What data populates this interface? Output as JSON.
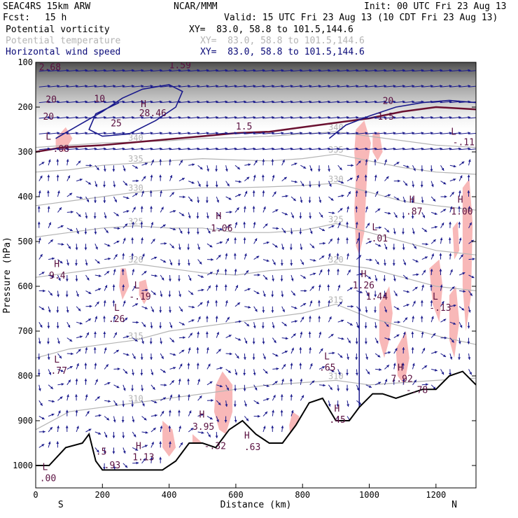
{
  "header": {
    "model": "SEAC4RS 15km ARW",
    "center": "NCAR/MMM",
    "init": "Init: 00 UTC Fri 23 Aug 13",
    "fcst_label": "Fcst:",
    "fcst_value": "15 h",
    "valid": "Valid: 15 UTC Fri 23 Aug 13 (10 CDT Fri 23 Aug 13)",
    "fields": [
      {
        "name": "Potential vorticity",
        "xy": "XY=  83.0, 58.8 to 101.5,144.6"
      },
      {
        "name": "Potential temperature",
        "xy": "XY=  83.0, 58.8 to 101.5,144.6"
      },
      {
        "name": "Horizontal wind speed",
        "xy": "XY=  83.0, 58.8 to 101.5,144.6"
      }
    ]
  },
  "colors": {
    "pv_shade": "#f8b8b8",
    "wind": "#1a1a8c",
    "theta": "#b4b4b4",
    "pv_label": "#5a1040",
    "terrain": "#000000",
    "tropo": "#6a1030"
  },
  "chart_data": {
    "type": "cross-section",
    "xlabel": "Distance (km)",
    "ylabel": "Pressure (hPa)",
    "xlim": [
      0,
      1320
    ],
    "ylim": [
      1050,
      100
    ],
    "x_ticks": [
      0,
      200,
      400,
      600,
      800,
      1000,
      1200
    ],
    "y_ticks": [
      100,
      200,
      300,
      400,
      500,
      600,
      700,
      800,
      900,
      1000
    ],
    "endpoints": {
      "left": "S",
      "right": "N"
    },
    "terrain": [
      [
        0,
        1000
      ],
      [
        40,
        1000
      ],
      [
        90,
        960
      ],
      [
        140,
        950
      ],
      [
        160,
        930
      ],
      [
        180,
        990
      ],
      [
        200,
        1010
      ],
      [
        300,
        1010
      ],
      [
        380,
        1010
      ],
      [
        420,
        990
      ],
      [
        460,
        950
      ],
      [
        500,
        950
      ],
      [
        540,
        960
      ],
      [
        580,
        920
      ],
      [
        620,
        900
      ],
      [
        660,
        930
      ],
      [
        700,
        950
      ],
      [
        740,
        950
      ],
      [
        780,
        910
      ],
      [
        820,
        860
      ],
      [
        860,
        850
      ],
      [
        900,
        900
      ],
      [
        940,
        900
      ],
      [
        970,
        870
      ],
      [
        1010,
        840
      ],
      [
        1040,
        840
      ],
      [
        1080,
        850
      ],
      [
        1120,
        840
      ],
      [
        1160,
        830
      ],
      [
        1200,
        830
      ],
      [
        1240,
        800
      ],
      [
        1280,
        790
      ],
      [
        1320,
        820
      ]
    ],
    "theta_contours": [
      {
        "label": "310",
        "points": [
          [
            0,
            920
          ],
          [
            100,
            880
          ],
          [
            200,
            870
          ],
          [
            300,
            860
          ],
          [
            400,
            850
          ],
          [
            500,
            840
          ],
          [
            600,
            830
          ],
          [
            700,
            820
          ],
          [
            800,
            815
          ],
          [
            900,
            810
          ],
          [
            1000,
            820
          ],
          [
            1100,
            815
          ],
          [
            1200,
            810
          ],
          [
            1320,
            805
          ]
        ]
      },
      {
        "label": "315",
        "points": [
          [
            0,
            760
          ],
          [
            100,
            740
          ],
          [
            200,
            730
          ],
          [
            300,
            720
          ],
          [
            400,
            700
          ],
          [
            500,
            690
          ],
          [
            600,
            680
          ],
          [
            700,
            670
          ],
          [
            800,
            660
          ],
          [
            900,
            640
          ],
          [
            1000,
            670
          ],
          [
            1100,
            690
          ],
          [
            1200,
            710
          ],
          [
            1320,
            730
          ]
        ]
      },
      {
        "label": "320",
        "points": [
          [
            0,
            580
          ],
          [
            100,
            570
          ],
          [
            200,
            560
          ],
          [
            300,
            550
          ],
          [
            400,
            560
          ],
          [
            500,
            570
          ],
          [
            600,
            575
          ],
          [
            700,
            565
          ],
          [
            800,
            560
          ],
          [
            900,
            550
          ],
          [
            1000,
            560
          ],
          [
            1100,
            580
          ],
          [
            1200,
            600
          ],
          [
            1320,
            610
          ]
        ]
      },
      {
        "label": "325",
        "points": [
          [
            0,
            490
          ],
          [
            100,
            480
          ],
          [
            200,
            470
          ],
          [
            300,
            465
          ],
          [
            400,
            470
          ],
          [
            500,
            470
          ],
          [
            600,
            480
          ],
          [
            700,
            480
          ],
          [
            800,
            475
          ],
          [
            900,
            460
          ],
          [
            1000,
            480
          ],
          [
            1100,
            500
          ],
          [
            1200,
            520
          ],
          [
            1320,
            530
          ]
        ]
      },
      {
        "label": "330",
        "points": [
          [
            0,
            420
          ],
          [
            100,
            410
          ],
          [
            200,
            400
          ],
          [
            300,
            390
          ],
          [
            400,
            385
          ],
          [
            500,
            380
          ],
          [
            600,
            380
          ],
          [
            700,
            378
          ],
          [
            800,
            375
          ],
          [
            900,
            370
          ],
          [
            1000,
            390
          ],
          [
            1100,
            410
          ],
          [
            1200,
            420
          ],
          [
            1320,
            430
          ]
        ]
      },
      {
        "label": "335",
        "points": [
          [
            0,
            345
          ],
          [
            100,
            340
          ],
          [
            200,
            330
          ],
          [
            300,
            325
          ],
          [
            400,
            320
          ],
          [
            500,
            315
          ],
          [
            600,
            318
          ],
          [
            700,
            320
          ],
          [
            800,
            315
          ],
          [
            900,
            305
          ],
          [
            1000,
            320
          ],
          [
            1100,
            335
          ],
          [
            1200,
            345
          ],
          [
            1320,
            350
          ]
        ]
      },
      {
        "label": "340",
        "points": [
          [
            0,
            290
          ],
          [
            100,
            285
          ],
          [
            200,
            280
          ],
          [
            300,
            278
          ],
          [
            400,
            275
          ],
          [
            500,
            270
          ],
          [
            600,
            268
          ],
          [
            700,
            265
          ],
          [
            800,
            260
          ],
          [
            900,
            255
          ],
          [
            1000,
            265
          ],
          [
            1100,
            275
          ],
          [
            1200,
            285
          ],
          [
            1320,
            290
          ]
        ]
      }
    ],
    "pv_shaded_regions": [
      [
        [
          60,
          270
        ],
        [
          90,
          245
        ],
        [
          110,
          270
        ],
        [
          85,
          300
        ],
        [
          60,
          290
        ]
      ],
      [
        [
          255,
          560
        ],
        [
          270,
          560
        ],
        [
          280,
          600
        ],
        [
          260,
          630
        ],
        [
          250,
          600
        ]
      ],
      [
        [
          310,
          590
        ],
        [
          330,
          585
        ],
        [
          340,
          620
        ],
        [
          325,
          640
        ],
        [
          310,
          620
        ]
      ],
      [
        [
          540,
          820
        ],
        [
          560,
          790
        ],
        [
          590,
          820
        ],
        [
          590,
          880
        ],
        [
          570,
          930
        ],
        [
          550,
          920
        ],
        [
          535,
          880
        ]
      ],
      [
        [
          380,
          900
        ],
        [
          410,
          920
        ],
        [
          420,
          960
        ],
        [
          400,
          980
        ],
        [
          380,
          960
        ]
      ],
      [
        [
          470,
          930
        ],
        [
          500,
          950
        ],
        [
          490,
          980
        ],
        [
          470,
          970
        ]
      ],
      [
        [
          760,
          910
        ],
        [
          770,
          880
        ],
        [
          790,
          890
        ],
        [
          785,
          940
        ],
        [
          765,
          950
        ]
      ],
      [
        [
          960,
          250
        ],
        [
          985,
          230
        ],
        [
          1005,
          280
        ],
        [
          995,
          330
        ],
        [
          990,
          400
        ],
        [
          985,
          480
        ],
        [
          970,
          530
        ],
        [
          960,
          510
        ],
        [
          955,
          430
        ],
        [
          960,
          350
        ],
        [
          955,
          300
        ]
      ],
      [
        [
          1010,
          260
        ],
        [
          1030,
          255
        ],
        [
          1040,
          300
        ],
        [
          1025,
          320
        ],
        [
          1010,
          300
        ]
      ],
      [
        [
          1030,
          640
        ],
        [
          1060,
          600
        ],
        [
          1070,
          660
        ],
        [
          1060,
          720
        ],
        [
          1045,
          760
        ],
        [
          1030,
          720
        ]
      ],
      [
        [
          1080,
          740
        ],
        [
          1110,
          700
        ],
        [
          1120,
          760
        ],
        [
          1105,
          820
        ],
        [
          1085,
          800
        ]
      ],
      [
        [
          1180,
          560
        ],
        [
          1210,
          540
        ],
        [
          1220,
          600
        ],
        [
          1210,
          680
        ],
        [
          1190,
          640
        ]
      ],
      [
        [
          1240,
          620
        ],
        [
          1260,
          600
        ],
        [
          1270,
          680
        ],
        [
          1255,
          760
        ],
        [
          1240,
          720
        ]
      ],
      [
        [
          1280,
          380
        ],
        [
          1300,
          360
        ],
        [
          1310,
          460
        ],
        [
          1305,
          620
        ],
        [
          1290,
          700
        ],
        [
          1280,
          600
        ]
      ],
      [
        [
          1250,
          470
        ],
        [
          1265,
          455
        ],
        [
          1270,
          520
        ],
        [
          1255,
          540
        ]
      ]
    ],
    "pv_labels": [
      {
        "text": "2.68",
        "x": 10,
        "p": 118
      },
      {
        "text": "1.59",
        "x": 400,
        "p": 113
      },
      {
        "text": "20",
        "x": 30,
        "p": 190
      },
      {
        "text": "10",
        "x": 175,
        "p": 188
      },
      {
        "text": "H",
        "x": 315,
        "p": 200
      },
      {
        "text": "28.46",
        "x": 310,
        "p": 220
      },
      {
        "text": "20",
        "x": 22,
        "p": 228
      },
      {
        "text": "25",
        "x": 225,
        "p": 243
      },
      {
        "text": "1.5",
        "x": 600,
        "p": 250
      },
      {
        "text": "L",
        "x": 30,
        "p": 273
      },
      {
        "text": "-.08",
        "x": 35,
        "p": 300
      },
      {
        "text": "20",
        "x": 1040,
        "p": 193
      },
      {
        "text": "1.5",
        "x": 1025,
        "p": 228
      },
      {
        "text": "L",
        "x": 1245,
        "p": 262
      },
      {
        "text": "-.11",
        "x": 1250,
        "p": 285
      },
      {
        "text": "H",
        "x": 540,
        "p": 450
      },
      {
        "text": "1.06",
        "x": 525,
        "p": 477
      },
      {
        "text": "H",
        "x": 1120,
        "p": 413
      },
      {
        "text": ".87",
        "x": 1110,
        "p": 440
      },
      {
        "text": "H",
        "x": 1265,
        "p": 413
      },
      {
        "text": "1.00",
        "x": 1245,
        "p": 440
      },
      {
        "text": "L",
        "x": 1008,
        "p": 475
      },
      {
        "text": "-.01",
        "x": 990,
        "p": 500
      },
      {
        "text": "H",
        "x": 55,
        "p": 557
      },
      {
        "text": "9.4",
        "x": 40,
        "p": 583
      },
      {
        "text": "H",
        "x": 975,
        "p": 580
      },
      {
        "text": "1.26",
        "x": 950,
        "p": 605
      },
      {
        "text": "1.44",
        "x": 990,
        "p": 630
      },
      {
        "text": "L",
        "x": 295,
        "p": 605
      },
      {
        "text": "-.19",
        "x": 280,
        "p": 630
      },
      {
        "text": "L",
        "x": 1190,
        "p": 630
      },
      {
        "text": "-.13",
        "x": 1180,
        "p": 655
      },
      {
        "text": "L",
        "x": 235,
        "p": 655
      },
      {
        "text": ".26",
        "x": 218,
        "p": 680
      },
      {
        "text": "L",
        "x": 55,
        "p": 770
      },
      {
        "text": ".77",
        "x": 45,
        "p": 795
      },
      {
        "text": "L",
        "x": 865,
        "p": 763
      },
      {
        "text": ".65",
        "x": 850,
        "p": 788
      },
      {
        "text": "H",
        "x": 1085,
        "p": 788
      },
      {
        "text": "7.92",
        "x": 1065,
        "p": 813
      },
      {
        "text": "-.78",
        "x": 1110,
        "p": 838
      },
      {
        "text": "H",
        "x": 895,
        "p": 880
      },
      {
        "text": ".45",
        "x": 880,
        "p": 905
      },
      {
        "text": "H",
        "x": 490,
        "p": 893
      },
      {
        "text": "3.95",
        "x": 470,
        "p": 920
      },
      {
        "text": "H",
        "x": 625,
        "p": 940
      },
      {
        "text": "-.32",
        "x": 505,
        "p": 963
      },
      {
        "text": ".63",
        "x": 625,
        "p": 966
      },
      {
        "text": "H",
        "x": 300,
        "p": 963
      },
      {
        "text": "1.13",
        "x": 290,
        "p": 988
      },
      {
        "text": "L",
        "x": 20,
        "p": 1010
      },
      {
        "text": ".00",
        "x": 12,
        "p": 1035
      },
      {
        "text": ".5",
        "x": 180,
        "p": 976
      },
      {
        "text": ".93",
        "x": 205,
        "p": 1006
      }
    ]
  }
}
